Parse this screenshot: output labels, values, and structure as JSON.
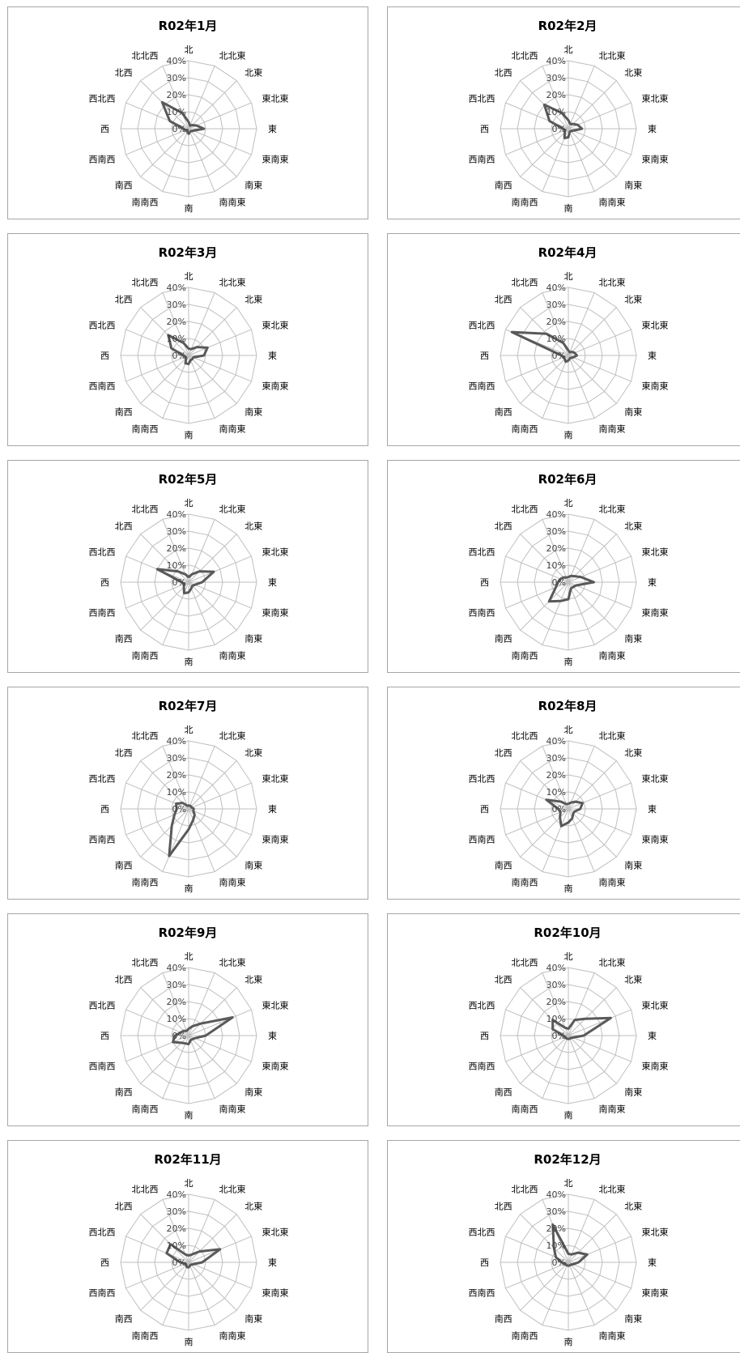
{
  "chart_data": [
    {
      "type": "radar",
      "title": "R02年1月",
      "categories": [
        "北",
        "北北東",
        "北東",
        "東北東",
        "東",
        "東南東",
        "南東",
        "南南東",
        "南",
        "南南西",
        "南西",
        "西南西",
        "西",
        "西北西",
        "北西",
        "北北西"
      ],
      "rlabels": [
        "0%",
        "10%",
        "20%",
        "30%",
        "40%"
      ],
      "rlim": [
        0,
        40
      ],
      "values": [
        4,
        2,
        3,
        5,
        9,
        3,
        2,
        2,
        3,
        2,
        1,
        2,
        3,
        12,
        22,
        10
      ]
    },
    {
      "type": "radar",
      "title": "R02年2月",
      "categories": [
        "北",
        "北北東",
        "北東",
        "東北東",
        "東",
        "東南東",
        "南東",
        "南南東",
        "南",
        "南南西",
        "南西",
        "西南西",
        "西",
        "西北西",
        "北西",
        "北北西"
      ],
      "rlabels": [
        "0%",
        "10%",
        "20%",
        "30%",
        "40%"
      ],
      "rlim": [
        0,
        40
      ],
      "values": [
        5,
        3,
        4,
        6,
        8,
        3,
        2,
        2,
        5,
        6,
        3,
        2,
        3,
        12,
        20,
        10
      ]
    },
    {
      "type": "radar",
      "title": "R02年3月",
      "categories": [
        "北",
        "北北東",
        "北東",
        "東北東",
        "東",
        "東南東",
        "南東",
        "南南東",
        "南",
        "南南西",
        "南西",
        "西南西",
        "西",
        "西北西",
        "北西",
        "北北西"
      ],
      "rlabels": [
        "0%",
        "10%",
        "20%",
        "30%",
        "40%"
      ],
      "rlim": [
        0,
        40
      ],
      "values": [
        4,
        4,
        7,
        12,
        9,
        3,
        3,
        3,
        5,
        5,
        2,
        2,
        3,
        11,
        17,
        8
      ]
    },
    {
      "type": "radar",
      "title": "R02年4月",
      "categories": [
        "北",
        "北北東",
        "北東",
        "東北東",
        "東",
        "東南東",
        "南東",
        "南南東",
        "南",
        "南南西",
        "南西",
        "西南西",
        "西",
        "西北西",
        "北西",
        "北北西"
      ],
      "rlabels": [
        "0%",
        "10%",
        "20%",
        "30%",
        "40%"
      ],
      "rlim": [
        0,
        40
      ],
      "values": [
        3,
        2,
        3,
        4,
        5,
        3,
        2,
        2,
        3,
        4,
        3,
        3,
        4,
        36,
        18,
        8
      ]
    },
    {
      "type": "radar",
      "title": "R02年5月",
      "categories": [
        "北",
        "北北東",
        "北東",
        "東北東",
        "東",
        "東南東",
        "南東",
        "南南東",
        "南",
        "南南西",
        "南西",
        "西南西",
        "西",
        "西北西",
        "北西",
        "北北西"
      ],
      "rlabels": [
        "0%",
        "10%",
        "20%",
        "30%",
        "40%"
      ],
      "rlim": [
        0,
        40
      ],
      "values": [
        3,
        5,
        9,
        16,
        8,
        4,
        3,
        4,
        6,
        7,
        4,
        3,
        4,
        20,
        9,
        5
      ]
    },
    {
      "type": "radar",
      "title": "R02年6月",
      "categories": [
        "北",
        "北北東",
        "北東",
        "東北東",
        "東",
        "東南東",
        "南東",
        "南南東",
        "南",
        "南南西",
        "南西",
        "西南西",
        "西",
        "西北西",
        "北西",
        "北北西"
      ],
      "rlabels": [
        "0%",
        "10%",
        "20%",
        "30%",
        "40%"
      ],
      "rlim": [
        0,
        40
      ],
      "values": [
        3,
        4,
        5,
        8,
        15,
        5,
        4,
        4,
        10,
        12,
        16,
        8,
        6,
        5,
        4,
        3
      ]
    },
    {
      "type": "radar",
      "title": "R02年7月",
      "categories": [
        "北",
        "北北東",
        "北東",
        "東北東",
        "東",
        "東南東",
        "南東",
        "南南東",
        "南",
        "南南西",
        "南西",
        "西南西",
        "西",
        "西北西",
        "北西",
        "北北西"
      ],
      "rlabels": [
        "0%",
        "10%",
        "20%",
        "30%",
        "40%"
      ],
      "rlim": [
        0,
        40
      ],
      "values": [
        2,
        2,
        2,
        2,
        3,
        3,
        5,
        7,
        12,
        30,
        14,
        9,
        7,
        8,
        5,
        2
      ]
    },
    {
      "type": "radar",
      "title": "R02年8月",
      "categories": [
        "北",
        "北北東",
        "北東",
        "東北東",
        "東",
        "東南東",
        "南東",
        "南南東",
        "南",
        "南南西",
        "南西",
        "西南西",
        "西",
        "西北西",
        "北西",
        "北北西"
      ],
      "rlabels": [
        "0%",
        "10%",
        "20%",
        "30%",
        "40%"
      ],
      "rlim": [
        0,
        40
      ],
      "values": [
        3,
        4,
        6,
        9,
        7,
        4,
        4,
        6,
        8,
        11,
        7,
        5,
        6,
        14,
        6,
        3
      ]
    },
    {
      "type": "radar",
      "title": "R02年9月",
      "categories": [
        "北",
        "北北東",
        "北東",
        "東北東",
        "東",
        "東南東",
        "南東",
        "南南東",
        "南",
        "南南西",
        "南西",
        "西南西",
        "西",
        "西北西",
        "北西",
        "北北西"
      ],
      "rlabels": [
        "0%",
        "10%",
        "20%",
        "30%",
        "40%"
      ],
      "rlim": [
        0,
        40
      ],
      "values": [
        4,
        6,
        10,
        28,
        10,
        4,
        3,
        3,
        5,
        5,
        6,
        10,
        8,
        5,
        4,
        3
      ]
    },
    {
      "type": "radar",
      "title": "R02年10月",
      "categories": [
        "北",
        "北北東",
        "北東",
        "東北東",
        "東",
        "東南東",
        "南東",
        "南南東",
        "南",
        "南南西",
        "南西",
        "西南西",
        "西",
        "西北西",
        "北西",
        "北北西"
      ],
      "rlabels": [
        "0%",
        "10%",
        "20%",
        "30%",
        "40%"
      ],
      "rlim": [
        0,
        40
      ],
      "values": [
        4,
        10,
        14,
        27,
        9,
        3,
        2,
        2,
        2,
        2,
        2,
        2,
        3,
        10,
        13,
        5
      ]
    },
    {
      "type": "radar",
      "title": "R02年11月",
      "categories": [
        "北",
        "北北東",
        "北東",
        "東北東",
        "東",
        "東南東",
        "南東",
        "南南東",
        "南",
        "南南西",
        "南西",
        "西南西",
        "西",
        "西北西",
        "北西",
        "北北西"
      ],
      "rlabels": [
        "0%",
        "10%",
        "20%",
        "30%",
        "40%"
      ],
      "rlim": [
        0,
        40
      ],
      "values": [
        4,
        5,
        9,
        20,
        8,
        3,
        2,
        2,
        3,
        3,
        2,
        2,
        5,
        14,
        15,
        5
      ]
    },
    {
      "type": "radar",
      "title": "R02年12月",
      "categories": [
        "北",
        "北北東",
        "北東",
        "東北東",
        "東",
        "東南東",
        "南東",
        "南南東",
        "南",
        "南南西",
        "南西",
        "西南西",
        "西",
        "西北西",
        "北西",
        "北北西"
      ],
      "rlabels": [
        "0%",
        "10%",
        "20%",
        "30%",
        "40%"
      ],
      "rlim": [
        0,
        40
      ],
      "values": [
        5,
        5,
        8,
        12,
        6,
        3,
        2,
        2,
        2,
        2,
        2,
        2,
        4,
        8,
        12,
        24
      ]
    }
  ]
}
